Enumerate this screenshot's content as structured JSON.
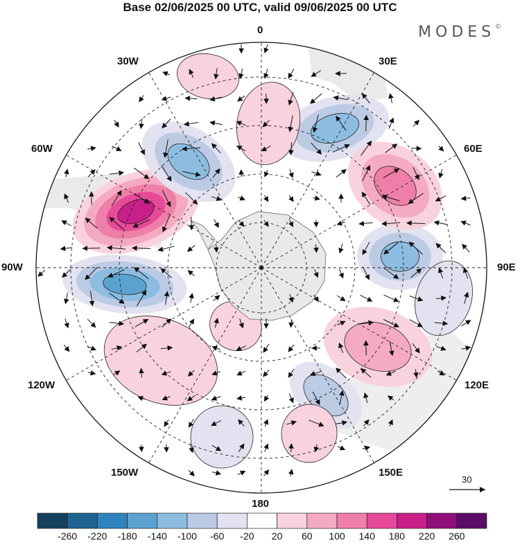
{
  "title": "Base 02/06/2025 00 UTC, valid 09/06/2025 00 UTC",
  "brand": {
    "name": "MODES",
    "mark": "©"
  },
  "longitude_labels": {
    "lon_0": "0",
    "lon_30e": "30E",
    "lon_60e": "60E",
    "lon_90e": "90E",
    "lon_120e": "120E",
    "lon_150e": "150E",
    "lon_180": "180",
    "lon_150w": "150W",
    "lon_120w": "120W",
    "lon_90w": "90W",
    "lon_60w": "60W",
    "lon_30w": "30W"
  },
  "reference_vector": {
    "label": "30"
  },
  "colorbar": {
    "labels": [
      "-260",
      "-220",
      "-180",
      "-140",
      "-100",
      "-60",
      "-20",
      "20",
      "60",
      "100",
      "140",
      "180",
      "220",
      "260"
    ],
    "colors": [
      "#15415f",
      "#1f6390",
      "#2f84bd",
      "#5aa2d0",
      "#8cbde0",
      "#bccbe4",
      "#e3e2f0",
      "#ffffff",
      "#f8d2dd",
      "#f4aac0",
      "#ee7fa8",
      "#e64a98",
      "#c81f88",
      "#8f0f77",
      "#5b0a66"
    ]
  },
  "map_colors": {
    "antarctica": "#e9e9e9",
    "land": "#d9d9d9"
  }
}
